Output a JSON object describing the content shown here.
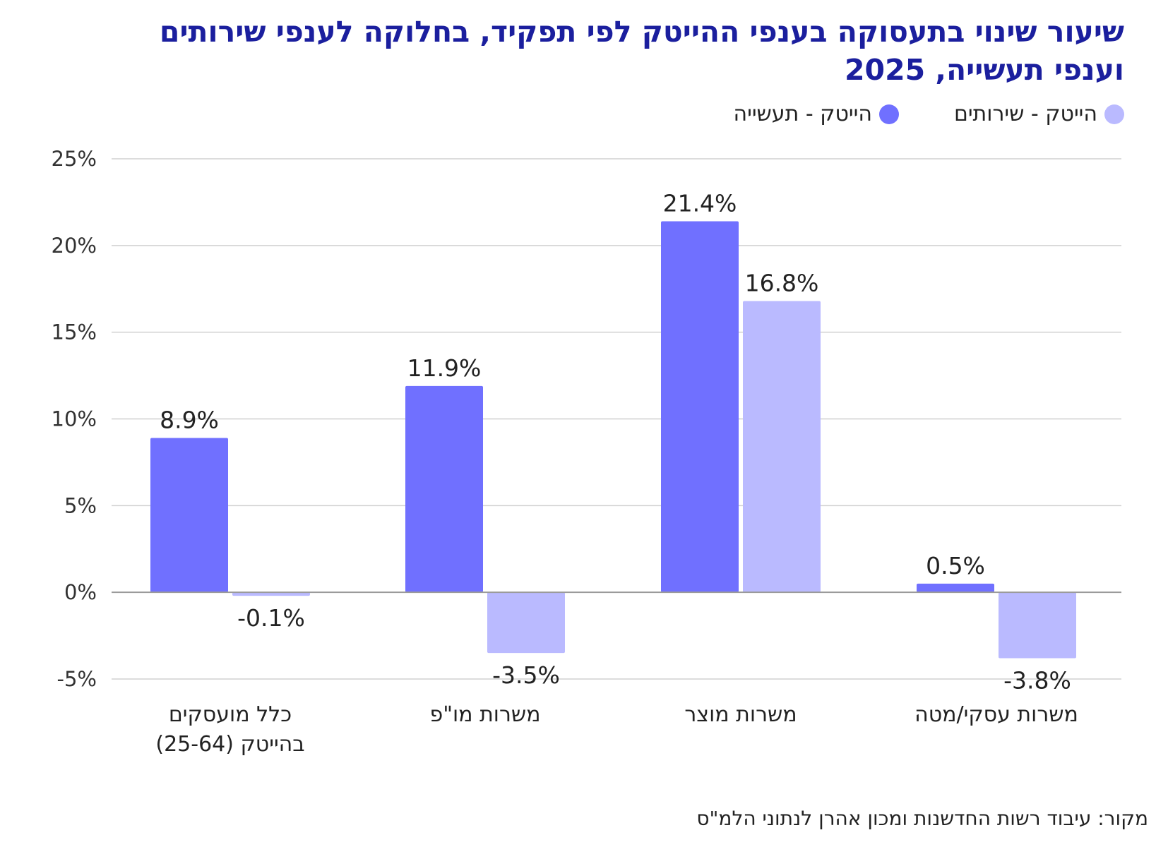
{
  "title_line1": "שיעור שינוי בתעסוקה בענפי ההייטק לפי תפקיד, בחלוקה לענפי שירותים",
  "title_line2": "וענפי תעשייה, 2025",
  "source": "מקור: עיבוד רשות החדשנות ומכון אהרן לנתוני הלמ\"ס",
  "colors": {
    "industry": "#7070ff",
    "services": "#babaff",
    "title": "#1b1f9e",
    "grid": "#d0d0d0"
  },
  "chart_data": {
    "type": "bar",
    "categories": [
      {
        "line1": "כלל מועסקים",
        "line2": "בהייטק (25-64)"
      },
      {
        "line1": "משרות מו\"פ",
        "line2": ""
      },
      {
        "line1": "משרות מוצר",
        "line2": ""
      },
      {
        "line1": "משרות עסקי/מטה",
        "line2": ""
      }
    ],
    "series": [
      {
        "name": "הייטק - תעשייה",
        "values": [
          8.9,
          11.9,
          21.4,
          0.5
        ],
        "labels": [
          "8.9%",
          "11.9%",
          "21.4%",
          "0.5%"
        ]
      },
      {
        "name": "הייטק - שירותים",
        "values": [
          -0.1,
          -3.5,
          16.8,
          -3.8
        ],
        "labels": [
          "-0.1%",
          "-3.5%",
          "16.8%",
          "-3.8%"
        ]
      }
    ],
    "yticks": [
      {
        "v": 25,
        "label": "25%"
      },
      {
        "v": 20,
        "label": "20%"
      },
      {
        "v": 15,
        "label": "15%"
      },
      {
        "v": 10,
        "label": "10%"
      },
      {
        "v": 5,
        "label": "5%"
      },
      {
        "v": 0,
        "label": "0%"
      },
      {
        "v": -5,
        "label": "-5%"
      }
    ],
    "ylim": [
      -5,
      25
    ],
    "grid": true,
    "legend_position": "top-right"
  }
}
